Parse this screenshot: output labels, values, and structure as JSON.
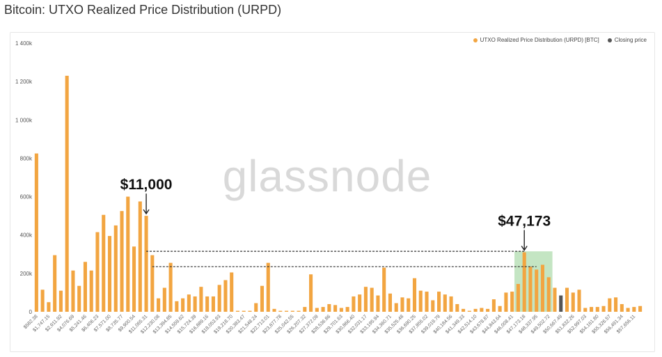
{
  "title": "Bitcoin: UTXO Realized Price Distribution (URPD)",
  "watermark": "glassnode",
  "legend": [
    {
      "label": "UTXO Realized Price Distribution (URPD) [BTC]",
      "color": "#f2a541"
    },
    {
      "label": "Closing price",
      "color": "#555555"
    }
  ],
  "chart_data": {
    "type": "bar",
    "ylim": [
      0,
      1400000
    ],
    "yticks": [
      0,
      200000,
      400000,
      600000,
      800000,
      1000000,
      1200000,
      1400000
    ],
    "ytick_labels": [
      "0",
      "200k",
      "400k",
      "600k",
      "800k",
      "1 000k",
      "1 200k",
      "1 400k"
    ],
    "xtick_labels": [
      "$582.38",
      "$1,747.15",
      "$2,911.92",
      "$4,076.69",
      "$5,241.46",
      "$6,406.23",
      "$7,571.00",
      "$8,735.77",
      "$9,900.54",
      "$11,065.31",
      "$12,230.08",
      "$13,394.85",
      "$14,559.62",
      "$15,724.39",
      "$16,889.16",
      "$18,053.93",
      "$19,218.70",
      "$20,383.47",
      "$21,548.24",
      "$22,713.01",
      "$23,877.78",
      "$25,042.55",
      "$26,207.32",
      "$27,372.09",
      "$28,536.86",
      "$29,701.63",
      "$30,866.40",
      "$32,031.17",
      "$33,195.94",
      "$34,360.71",
      "$35,525.48",
      "$36,690.25",
      "$37,855.02",
      "$39,019.79",
      "$40,184.56",
      "$41,349.33",
      "$42,514.10",
      "$43,678.87",
      "$44,843.64",
      "$46,008.41",
      "$47,173.18",
      "$48,337.95",
      "$49,502.72",
      "$50,667.49",
      "$51,832.26",
      "$52,997.03",
      "$54,161.80",
      "$55,326.57",
      "$56,491.34",
      "$57,656.11"
    ],
    "values": [
      825000,
      115000,
      50000,
      295000,
      110000,
      1230000,
      215000,
      135000,
      260000,
      215000,
      415000,
      505000,
      395000,
      450000,
      525000,
      600000,
      340000,
      575000,
      500000,
      295000,
      70000,
      125000,
      255000,
      55000,
      70000,
      90000,
      80000,
      130000,
      80000,
      80000,
      140000,
      165000,
      205000,
      5000,
      5000,
      5000,
      45000,
      135000,
      255000,
      15000,
      5000,
      5000,
      5000,
      5000,
      25000,
      195000,
      20000,
      25000,
      40000,
      35000,
      20000,
      25000,
      80000,
      90000,
      130000,
      125000,
      85000,
      230000,
      95000,
      45000,
      75000,
      70000,
      175000,
      110000,
      105000,
      60000,
      105000,
      90000,
      80000,
      40000,
      15000,
      5000,
      15000,
      20000,
      15000,
      65000,
      30000,
      100000,
      105000,
      145000,
      310000,
      235000,
      220000,
      245000,
      180000,
      125000,
      85000,
      125000,
      100000,
      115000,
      20000,
      25000,
      25000,
      30000,
      70000,
      75000,
      40000,
      20000,
      25000,
      30000
    ],
    "closing_price_bar_index": 86,
    "annotations": [
      {
        "label": "$11,000",
        "bar_index": 18
      },
      {
        "label": "$47,173",
        "bar_index": 80
      }
    ],
    "highlight_range": {
      "from_index": 79,
      "to_index": 84,
      "top": 315000
    },
    "reference_lines": [
      {
        "from_index": 18,
        "to_index": 80,
        "value": 315000
      },
      {
        "from_index": 19,
        "to_index": 82,
        "value": 235000
      }
    ],
    "colors": {
      "bar": "#f2a541",
      "closing": "#555555",
      "highlight": "#7cc67a"
    }
  }
}
